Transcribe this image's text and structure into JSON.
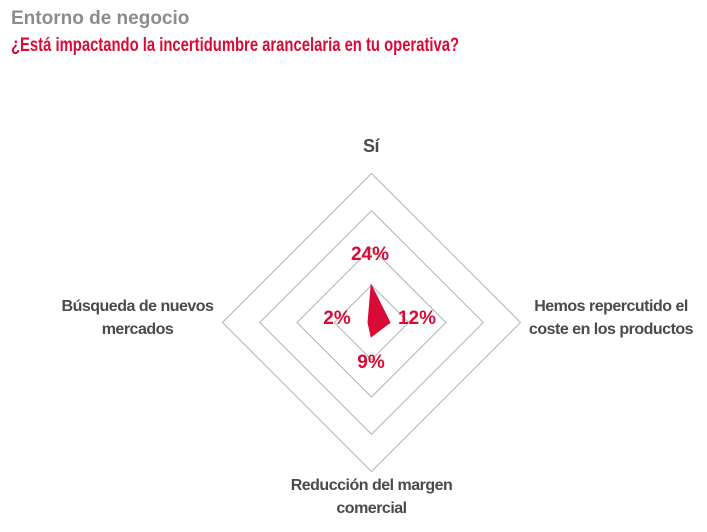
{
  "colors": {
    "accent_red": "#d90b36",
    "kicker_gray": "#8c8c8c",
    "label_dark": "#4a4a4a",
    "grid_gray": "#b3b3b3",
    "background": "#ffffff"
  },
  "header": {
    "kicker": "Entorno de negocio",
    "title": "¿Está impactando la incertidumbre arancelaria en tu operativa?"
  },
  "chart_data": {
    "type": "radar",
    "title": "¿Está impactando la incertidumbre arancelaria en tu operativa?",
    "subtitle_kicker": "Entorno de negocio",
    "max": 100,
    "rings_percent": [
      25,
      50,
      75,
      100
    ],
    "grid": "concentric diamond rings, light gray, no tick labels",
    "legend": "none",
    "unit": "%",
    "axes": [
      {
        "id": "top",
        "label": "Sí",
        "label_lines": [
          "Sí"
        ],
        "value": 24,
        "value_label": "24%"
      },
      {
        "id": "right",
        "label": "Hemos repercutido el coste en los productos",
        "label_lines": [
          "Hemos repercutido el",
          "coste en los productos"
        ],
        "value": 12,
        "value_label": "12%"
      },
      {
        "id": "bottom",
        "label": "Reducción del margen comercial",
        "label_lines": [
          "Reducción del margen",
          "comercial"
        ],
        "value": 9,
        "value_label": "9%"
      },
      {
        "id": "left",
        "label": "Búsqueda de nuevos mercados",
        "label_lines": [
          "Búsqueda de nuevos",
          "mercados"
        ],
        "value": 2,
        "value_label": "2%"
      }
    ]
  }
}
